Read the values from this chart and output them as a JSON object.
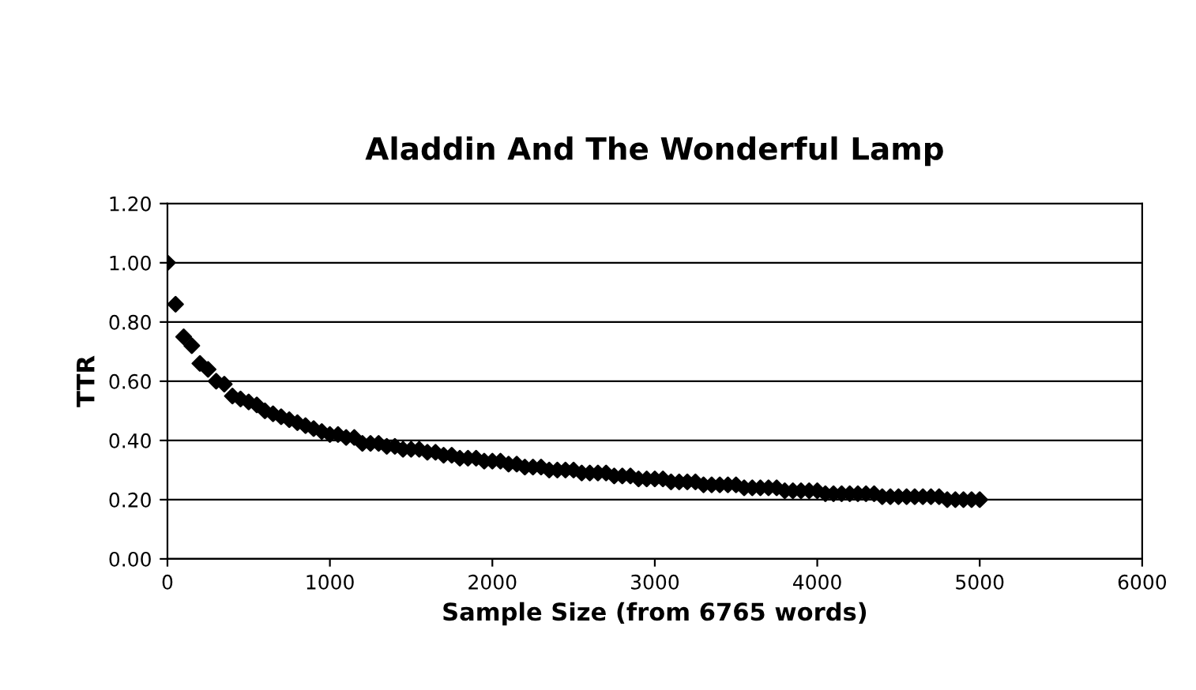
{
  "chart_data": {
    "type": "scatter",
    "title": "Aladdin And The Wonderful Lamp",
    "xlabel": "Sample Size (from 6765 words)",
    "ylabel": "TTR",
    "xlim": [
      0,
      6000
    ],
    "xticks": [
      0,
      1000,
      2000,
      3000,
      4000,
      5000,
      6000
    ],
    "ylim": [
      0,
      1.2
    ],
    "yticks": [
      {
        "value": 0,
        "label": "0.00"
      },
      {
        "value": 0.2,
        "label": "0.20"
      },
      {
        "value": 0.4,
        "label": "0.40"
      },
      {
        "value": 0.6,
        "label": "0.60"
      },
      {
        "value": 0.8,
        "label": "0.80"
      },
      {
        "value": 1.0,
        "label": "1.00"
      },
      {
        "value": 1.2,
        "label": "1.20"
      }
    ],
    "grid": "y",
    "legend": false,
    "marker": "diamond",
    "series": [
      {
        "color": "#000000",
        "x": [
          0,
          50,
          100,
          150,
          200,
          250,
          300,
          350,
          400,
          450,
          500,
          550,
          600,
          650,
          700,
          750,
          800,
          850,
          900,
          950,
          1000,
          1050,
          1100,
          1150,
          1200,
          1250,
          1300,
          1350,
          1400,
          1450,
          1500,
          1550,
          1600,
          1650,
          1700,
          1750,
          1800,
          1850,
          1900,
          1950,
          2000,
          2050,
          2100,
          2150,
          2200,
          2250,
          2300,
          2350,
          2400,
          2450,
          2500,
          2550,
          2600,
          2650,
          2700,
          2750,
          2800,
          2850,
          2900,
          2950,
          3000,
          3050,
          3100,
          3150,
          3200,
          3250,
          3300,
          3350,
          3400,
          3450,
          3500,
          3550,
          3600,
          3650,
          3700,
          3750,
          3800,
          3850,
          3900,
          3950,
          4000,
          4050,
          4100,
          4150,
          4200,
          4250,
          4300,
          4350,
          4400,
          4450,
          4500,
          4550,
          4600,
          4650,
          4700,
          4750,
          4800,
          4850,
          4900,
          4950,
          5000
        ],
        "values": [
          1.0,
          0.86,
          0.75,
          0.72,
          0.66,
          0.64,
          0.6,
          0.59,
          0.55,
          0.54,
          0.53,
          0.52,
          0.5,
          0.49,
          0.48,
          0.47,
          0.46,
          0.45,
          0.44,
          0.43,
          0.42,
          0.42,
          0.41,
          0.41,
          0.39,
          0.39,
          0.39,
          0.38,
          0.38,
          0.37,
          0.37,
          0.37,
          0.36,
          0.36,
          0.35,
          0.35,
          0.34,
          0.34,
          0.34,
          0.33,
          0.33,
          0.33,
          0.32,
          0.32,
          0.31,
          0.31,
          0.31,
          0.3,
          0.3,
          0.3,
          0.3,
          0.29,
          0.29,
          0.29,
          0.29,
          0.28,
          0.28,
          0.28,
          0.27,
          0.27,
          0.27,
          0.27,
          0.26,
          0.26,
          0.26,
          0.26,
          0.25,
          0.25,
          0.25,
          0.25,
          0.25,
          0.24,
          0.24,
          0.24,
          0.24,
          0.24,
          0.23,
          0.23,
          0.23,
          0.23,
          0.23,
          0.22,
          0.22,
          0.22,
          0.22,
          0.22,
          0.22,
          0.22,
          0.21,
          0.21,
          0.21,
          0.21,
          0.21,
          0.21,
          0.21,
          0.21,
          0.2,
          0.2,
          0.2,
          0.2,
          0.2
        ]
      }
    ]
  }
}
